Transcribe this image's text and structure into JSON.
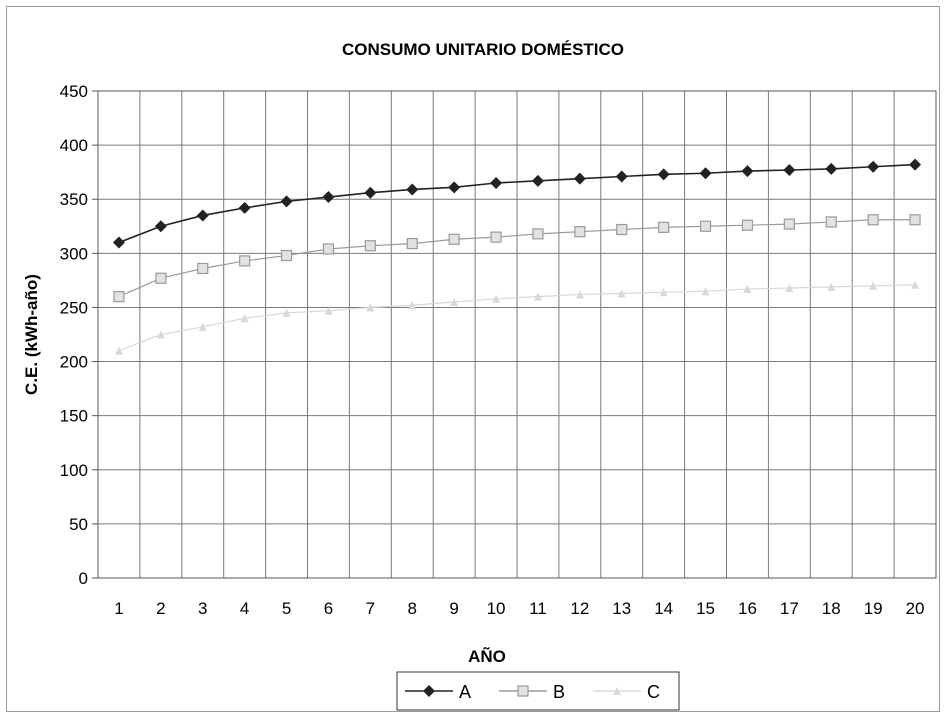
{
  "chart_data": {
    "type": "line",
    "title": "CONSUMO UNITARIO DOMÉSTICO",
    "xlabel": "AÑO",
    "ylabel": "C.E. (kWh-año)",
    "x": [
      1,
      2,
      3,
      4,
      5,
      6,
      7,
      8,
      9,
      10,
      11,
      12,
      13,
      14,
      15,
      16,
      17,
      18,
      19,
      20
    ],
    "ylim": [
      0,
      450
    ],
    "yticks": [
      0,
      50,
      100,
      150,
      200,
      250,
      300,
      350,
      400,
      450
    ],
    "grid": true,
    "legend_position": "bottom",
    "series": [
      {
        "name": "A",
        "color": "#222222",
        "marker": "diamond",
        "values": [
          310,
          325,
          335,
          342,
          348,
          352,
          356,
          359,
          361,
          365,
          367,
          369,
          371,
          373,
          374,
          376,
          377,
          378,
          380,
          382
        ]
      },
      {
        "name": "B",
        "color": "#9a9a9a",
        "marker": "square",
        "values": [
          260,
          277,
          286,
          293,
          298,
          304,
          307,
          309,
          313,
          315,
          318,
          320,
          322,
          324,
          325,
          326,
          327,
          329,
          331,
          331
        ]
      },
      {
        "name": "C",
        "color": "#d8d8d8",
        "marker": "triangle",
        "values": [
          210,
          225,
          232,
          240,
          245,
          247,
          250,
          252,
          255,
          258,
          260,
          262,
          263,
          264,
          265,
          267,
          268,
          269,
          270,
          271
        ]
      }
    ]
  }
}
